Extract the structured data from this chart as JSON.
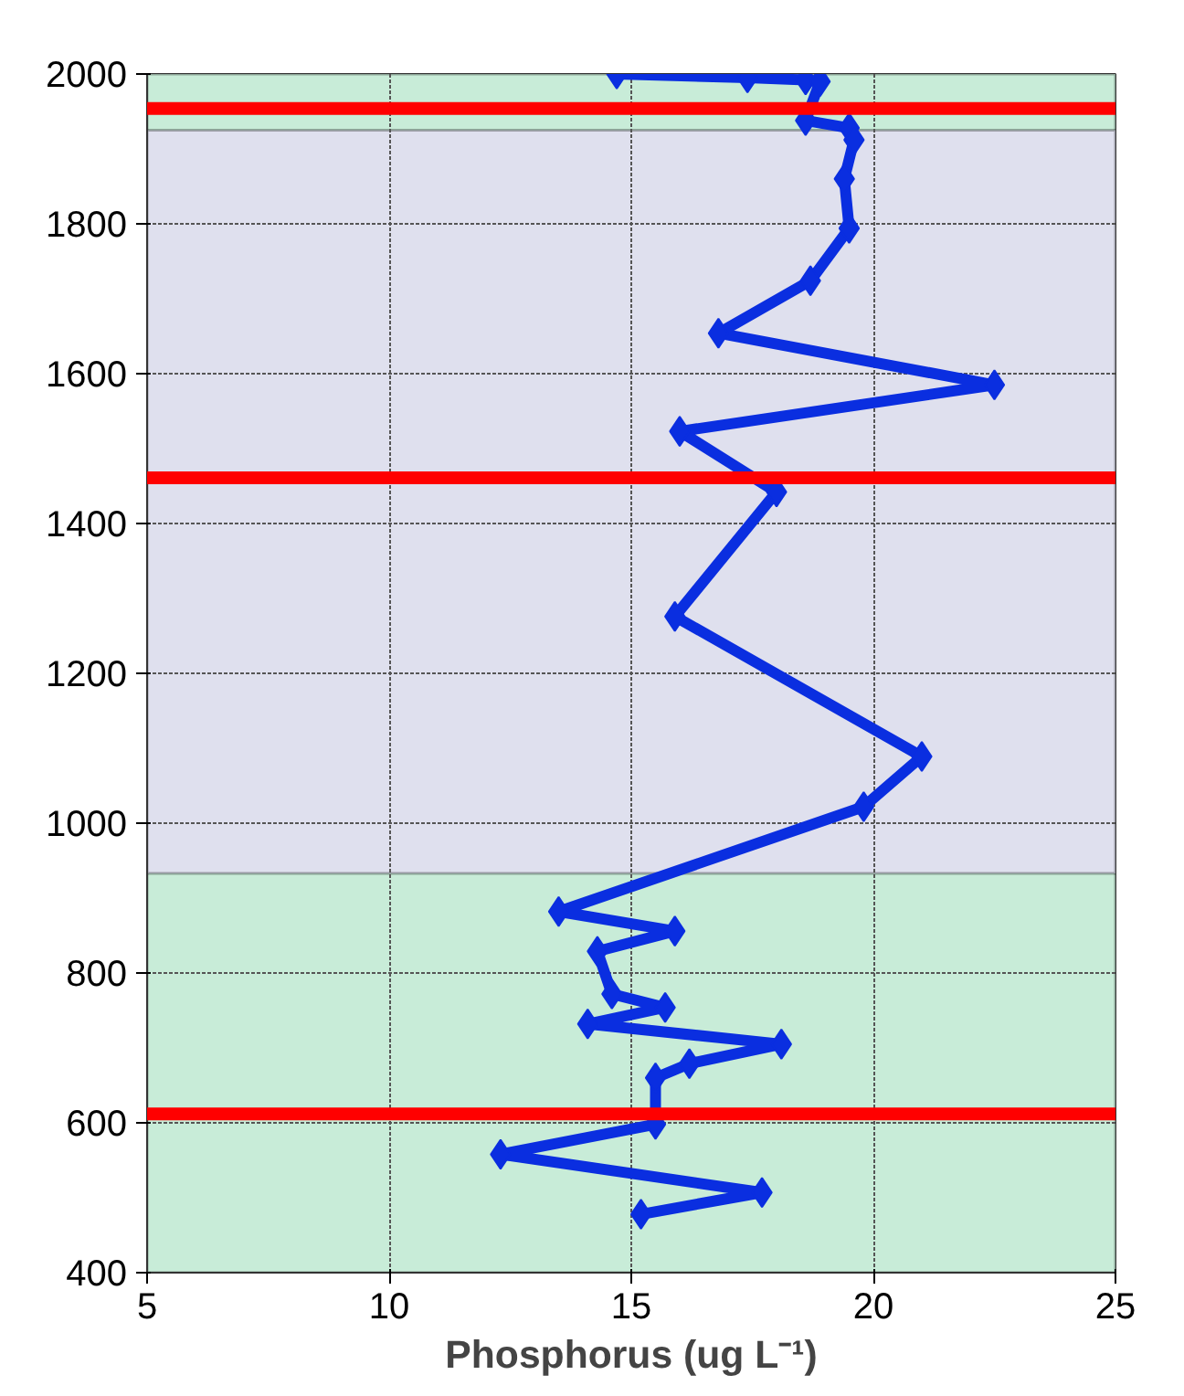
{
  "chart_data": {
    "type": "line",
    "xlabel": "Phosphorus (ug L⁻¹)",
    "xlim": [
      5,
      25
    ],
    "ylim": [
      400,
      2000
    ],
    "xticks": [
      5,
      10,
      15,
      20,
      25
    ],
    "yticks": [
      400,
      600,
      800,
      1000,
      1200,
      1400,
      1600,
      1800,
      2000
    ],
    "grid": true,
    "marker": "diamond",
    "line_style": "solid",
    "series": [
      {
        "color": "#0a2ee0",
        "x": [
          14.7,
          17.4,
          18.6,
          18.9,
          18.6,
          19.5,
          19.6,
          19.4,
          19.5,
          18.7,
          16.8,
          22.5,
          16.0,
          18.0,
          15.9,
          21.0,
          19.8,
          13.5,
          15.9,
          14.3,
          14.6,
          15.7,
          14.1,
          18.1,
          16.2,
          15.5,
          15.5,
          12.3,
          17.7,
          15.2
        ],
        "values": [
          2000,
          1995,
          1992,
          1990,
          1938,
          1928,
          1912,
          1860,
          1794,
          1724,
          1654,
          1585,
          1523,
          1442,
          1276,
          1089,
          1022,
          882,
          856,
          829,
          772,
          754,
          732,
          705,
          679,
          660,
          598,
          558,
          507,
          478
        ]
      }
    ],
    "bands": [
      {
        "axis": "y",
        "from": 400,
        "to": 2000,
        "color": "#c8ecd8"
      },
      {
        "axis": "y",
        "from": 933,
        "to": 1925,
        "color": "#dfe0ee"
      }
    ],
    "ref_lines": [
      {
        "axis": "y",
        "value": 1954,
        "color": "#ff0000"
      },
      {
        "axis": "y",
        "value": 1461,
        "color": "#ff0000"
      },
      {
        "axis": "y",
        "value": 612,
        "color": "#ff0000"
      }
    ]
  }
}
